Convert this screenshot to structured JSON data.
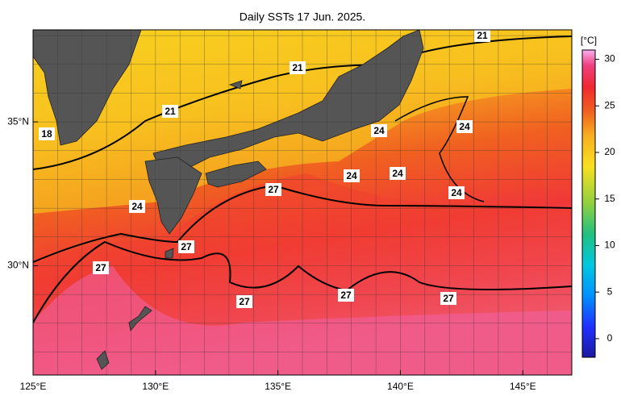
{
  "title": "Daily SSTs 17 Jun. 2025.",
  "x_axis": {
    "lim": [
      125,
      147
    ],
    "ticks": [
      {
        "value": 125,
        "label": "125°E"
      },
      {
        "value": 130,
        "label": "130°E"
      },
      {
        "value": 135,
        "label": "135°E"
      },
      {
        "value": 140,
        "label": "140°E"
      },
      {
        "value": 145,
        "label": "145°E"
      }
    ]
  },
  "y_axis": {
    "lim": [
      26.2,
      38.2
    ],
    "ticks": [
      {
        "value": 35,
        "label": "35°N"
      },
      {
        "value": 30,
        "label": "30°N"
      }
    ]
  },
  "colorbar": {
    "unit": "[°C]",
    "lim": [
      -2,
      31
    ],
    "ticks": [
      0,
      5,
      10,
      15,
      20,
      25,
      30
    ]
  },
  "contour_labels": [
    "21",
    "21",
    "21",
    "18",
    "24",
    "24",
    "24",
    "24",
    "24",
    "24",
    "27",
    "27",
    "27",
    "27",
    "27",
    "27"
  ]
}
